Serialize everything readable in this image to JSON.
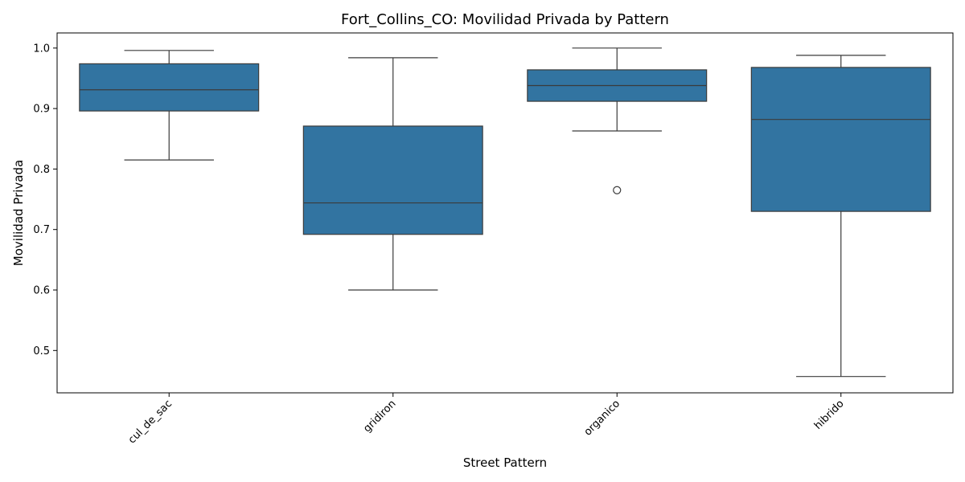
{
  "chart_data": {
    "type": "box",
    "title": "Fort_Collins_CO: Movilidad Privada by Pattern",
    "xlabel": "Street Pattern",
    "ylabel": "Movilidad Privada",
    "ylim": [
      0.43,
      1.025
    ],
    "yticks": [
      0.5,
      0.6,
      0.7,
      0.8,
      0.9,
      1.0
    ],
    "ytick_labels": [
      "0.5",
      "0.6",
      "0.7",
      "0.8",
      "0.9",
      "1.0"
    ],
    "categories": [
      "cul_de_sac",
      "gridiron",
      "organico",
      "hibrido"
    ],
    "box_color": "#3274a1",
    "line_color": "#3b3b3b",
    "grid": false,
    "boxes": [
      {
        "category": "cul_de_sac",
        "whisker_low": 0.815,
        "q1": 0.896,
        "median": 0.931,
        "q3": 0.974,
        "whisker_high": 0.996,
        "outliers": []
      },
      {
        "category": "gridiron",
        "whisker_low": 0.6,
        "q1": 0.692,
        "median": 0.744,
        "q3": 0.871,
        "whisker_high": 0.984,
        "outliers": []
      },
      {
        "category": "organico",
        "whisker_low": 0.863,
        "q1": 0.912,
        "median": 0.938,
        "q3": 0.964,
        "whisker_high": 1.0,
        "outliers": [
          0.765
        ]
      },
      {
        "category": "hibrido",
        "whisker_low": 0.457,
        "q1": 0.73,
        "median": 0.882,
        "q3": 0.968,
        "whisker_high": 0.988,
        "outliers": []
      }
    ]
  }
}
